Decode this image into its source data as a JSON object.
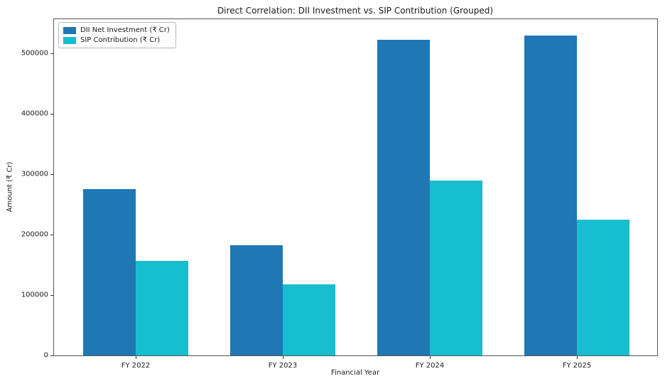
{
  "chart_data": {
    "type": "bar",
    "title": "Direct Correlation: DII Investment vs. SIP Contribution (Grouped)",
    "xlabel": "Financial Year",
    "ylabel": "Amount (₹ Cr)",
    "categories": [
      "FY 2022",
      "FY 2023",
      "FY 2024",
      "FY 2025"
    ],
    "series": [
      {
        "name": "DII Net Investment (₹ Cr)",
        "color": "#1f77b4",
        "values": [
          275000,
          182000,
          522000,
          530000
        ]
      },
      {
        "name": "SIP Contribution (₹ Cr)",
        "color": "#17becf",
        "values": [
          156000,
          118000,
          289000,
          225000
        ]
      }
    ],
    "ylim": [
      0,
      556500
    ],
    "yticks": [
      0,
      100000,
      200000,
      300000,
      400000,
      500000
    ],
    "legend_position": "upper left",
    "grid": false
  }
}
